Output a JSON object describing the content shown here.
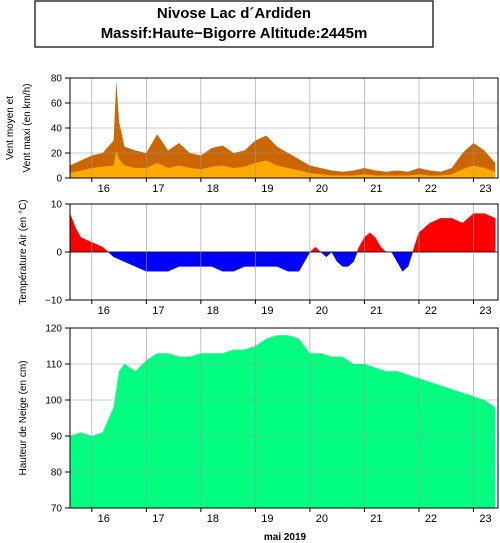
{
  "header": {
    "line1": "Nivose Lac d´Ardiden",
    "line2": "Massif:Haute−Bigorre Altitude:2445m"
  },
  "x_axis": {
    "days": [
      16,
      17,
      18,
      19,
      20,
      21,
      22,
      23
    ],
    "day_labels": [
      "16",
      "17",
      "18",
      "19",
      "20",
      "21",
      "22",
      "23"
    ],
    "month_label": "mai 2019"
  },
  "colors": {
    "wind_max": "#cc6600",
    "wind_mean": "#ffaa00",
    "temp_pos": "#ff0000",
    "temp_neg": "#0000ff",
    "snow": "#00ff80",
    "grid": "#999999"
  },
  "chart_data": [
    {
      "type": "area",
      "ylabel_line1": "Vent moyen et",
      "ylabel_line2": "Vent maxi (en km/h)",
      "ylim": [
        0,
        80
      ],
      "yticks": [
        "0",
        "20",
        "40",
        "60",
        "80"
      ],
      "grid": true,
      "x": [
        15.6,
        15.8,
        16.0,
        16.2,
        16.4,
        16.45,
        16.5,
        16.6,
        16.8,
        17.0,
        17.2,
        17.4,
        17.6,
        17.8,
        18.0,
        18.2,
        18.4,
        18.6,
        18.8,
        19.0,
        19.2,
        19.4,
        19.6,
        19.8,
        20.0,
        20.2,
        20.4,
        20.6,
        20.8,
        21.0,
        21.2,
        21.4,
        21.6,
        21.8,
        22.0,
        22.2,
        22.4,
        22.6,
        22.8,
        23.0,
        23.2,
        23.4
      ],
      "series": [
        {
          "name": "Vent maxi",
          "values": [
            10,
            14,
            18,
            20,
            30,
            78,
            45,
            25,
            22,
            20,
            35,
            22,
            28,
            20,
            18,
            24,
            26,
            20,
            22,
            30,
            34,
            25,
            20,
            15,
            10,
            8,
            6,
            5,
            6,
            8,
            6,
            5,
            6,
            5,
            8,
            6,
            5,
            8,
            20,
            28,
            22,
            12
          ]
        },
        {
          "name": "Vent moyen",
          "values": [
            4,
            6,
            8,
            9,
            10,
            22,
            15,
            10,
            8,
            8,
            12,
            8,
            10,
            8,
            7,
            9,
            10,
            8,
            9,
            12,
            14,
            10,
            8,
            6,
            4,
            3,
            2,
            2,
            2,
            3,
            2,
            2,
            2,
            2,
            3,
            2,
            2,
            3,
            7,
            10,
            8,
            5
          ]
        }
      ]
    },
    {
      "type": "area",
      "ylabel": "Température Air (en °C)",
      "ylim": [
        -10,
        10
      ],
      "yticks": [
        "−10",
        "0",
        "10"
      ],
      "grid": true,
      "x": [
        15.6,
        15.7,
        15.8,
        16.0,
        16.2,
        16.4,
        16.6,
        16.8,
        17.0,
        17.2,
        17.4,
        17.6,
        17.8,
        18.0,
        18.2,
        18.4,
        18.6,
        18.8,
        19.0,
        19.2,
        19.4,
        19.6,
        19.8,
        19.9,
        20.0,
        20.1,
        20.2,
        20.3,
        20.4,
        20.5,
        20.6,
        20.7,
        20.8,
        20.9,
        21.0,
        21.1,
        21.2,
        21.3,
        21.4,
        21.5,
        21.6,
        21.7,
        21.8,
        22.0,
        22.2,
        22.4,
        22.6,
        22.8,
        23.0,
        23.2,
        23.4
      ],
      "series": [
        {
          "name": "Température",
          "values": [
            8,
            5,
            3,
            2,
            1,
            -1,
            -2,
            -3,
            -4,
            -4,
            -4,
            -3,
            -3,
            -3,
            -3,
            -4,
            -4,
            -3,
            -3,
            -3,
            -3,
            -4,
            -4,
            -2,
            0,
            1,
            0,
            -1,
            0,
            -2,
            -3,
            -3,
            -2,
            1,
            3,
            4,
            3,
            1,
            0,
            0,
            -2,
            -4,
            -3,
            4,
            6,
            7,
            7,
            6,
            8,
            8,
            7
          ]
        }
      ]
    },
    {
      "type": "area",
      "ylabel": "Hauteur de Neige (en cm)",
      "ylim": [
        70,
        120
      ],
      "yticks": [
        "70",
        "80",
        "90",
        "100",
        "110",
        "120"
      ],
      "grid": true,
      "x": [
        15.6,
        15.8,
        16.0,
        16.2,
        16.4,
        16.5,
        16.6,
        16.8,
        17.0,
        17.2,
        17.4,
        17.6,
        17.8,
        18.0,
        18.2,
        18.4,
        18.6,
        18.8,
        19.0,
        19.2,
        19.4,
        19.6,
        19.8,
        20.0,
        20.2,
        20.4,
        20.6,
        20.8,
        21.0,
        21.2,
        21.4,
        21.6,
        21.8,
        22.0,
        22.2,
        22.4,
        22.6,
        22.8,
        23.0,
        23.2,
        23.4
      ],
      "series": [
        {
          "name": "Hauteur de neige",
          "values": [
            90,
            91,
            90,
            91,
            98,
            108,
            110,
            108,
            111,
            113,
            113,
            112,
            112,
            113,
            113,
            113,
            114,
            114,
            115,
            117,
            118,
            118,
            117,
            113,
            113,
            112,
            112,
            110,
            110,
            109,
            108,
            108,
            107,
            106,
            105,
            104,
            103,
            102,
            101,
            100,
            98
          ]
        }
      ]
    }
  ]
}
